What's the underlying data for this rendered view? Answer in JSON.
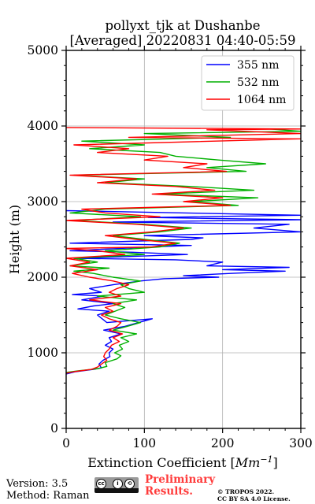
{
  "chart_data": {
    "type": "line",
    "title": "pollyxt_tjk at Dushanbe",
    "subtitle": "[Averaged] 20220831 04:40-05:59",
    "xlabel": "Extinction Coefficient [",
    "xlabel_unit": "Mm",
    "xlabel_unit_exp": "−1",
    "xlabel_close": "]",
    "ylabel": "Height (m)",
    "xlim": [
      0,
      300
    ],
    "ylim": [
      0,
      5000
    ],
    "xticks": [
      "0",
      "100",
      "200",
      "300"
    ],
    "yticks": [
      "0",
      "1000",
      "2000",
      "3000",
      "4000",
      "5000"
    ],
    "grid": true,
    "legend_position": "top-right",
    "series": [
      {
        "name": "355 nm",
        "color": "#0000ff",
        "profile": [
          [
            0,
            720
          ],
          [
            12,
            750
          ],
          [
            35,
            780
          ],
          [
            45,
            800
          ],
          [
            42,
            850
          ],
          [
            47,
            900
          ],
          [
            56,
            950
          ],
          [
            55,
            1000
          ],
          [
            60,
            1050
          ],
          [
            50,
            1100
          ],
          [
            58,
            1150
          ],
          [
            55,
            1200
          ],
          [
            70,
            1250
          ],
          [
            48,
            1300
          ],
          [
            75,
            1350
          ],
          [
            110,
            1450
          ],
          [
            52,
            1400
          ],
          [
            40,
            1500
          ],
          [
            55,
            1550
          ],
          [
            15,
            1580
          ],
          [
            35,
            1620
          ],
          [
            60,
            1650
          ],
          [
            20,
            1700
          ],
          [
            48,
            1750
          ],
          [
            8,
            1770
          ],
          [
            45,
            1800
          ],
          [
            30,
            1850
          ],
          [
            60,
            1900
          ],
          [
            95,
            1950
          ],
          [
            125,
            1980
          ],
          [
            195,
            2000
          ],
          [
            150,
            2020
          ],
          [
            210,
            2050
          ],
          [
            280,
            2080
          ],
          [
            200,
            2100
          ],
          [
            285,
            2130
          ],
          [
            180,
            2150
          ],
          [
            200,
            2200
          ],
          [
            140,
            2230
          ],
          [
            10,
            2250
          ],
          [
            155,
            2300
          ],
          [
            85,
            2330
          ],
          [
            5,
            2350
          ],
          [
            110,
            2400
          ],
          [
            160,
            2420
          ],
          [
            5,
            2450
          ],
          [
            160,
            2500
          ],
          [
            175,
            2520
          ],
          [
            100,
            2550
          ],
          [
            300,
            2600
          ],
          [
            240,
            2650
          ],
          [
            285,
            2700
          ],
          [
            60,
            2730
          ],
          [
            300,
            2760
          ],
          [
            105,
            2790
          ],
          [
            300,
            2820
          ],
          [
            100,
            2860
          ],
          [
            0,
            2880
          ]
        ]
      },
      {
        "name": "532 nm",
        "color": "#00b000",
        "profile": [
          [
            0,
            740
          ],
          [
            15,
            760
          ],
          [
            40,
            790
          ],
          [
            52,
            820
          ],
          [
            50,
            870
          ],
          [
            65,
            920
          ],
          [
            70,
            960
          ],
          [
            62,
            1000
          ],
          [
            72,
            1050
          ],
          [
            68,
            1100
          ],
          [
            80,
            1150
          ],
          [
            70,
            1200
          ],
          [
            90,
            1250
          ],
          [
            60,
            1300
          ],
          [
            78,
            1350
          ],
          [
            95,
            1400
          ],
          [
            70,
            1450
          ],
          [
            50,
            1500
          ],
          [
            75,
            1600
          ],
          [
            60,
            1650
          ],
          [
            90,
            1700
          ],
          [
            40,
            1750
          ],
          [
            100,
            1800
          ],
          [
            80,
            1850
          ],
          [
            70,
            1900
          ],
          [
            95,
            1950
          ],
          [
            60,
            2000
          ],
          [
            35,
            2050
          ],
          [
            10,
            2080
          ],
          [
            55,
            2120
          ],
          [
            5,
            2150
          ],
          [
            40,
            2200
          ],
          [
            10,
            2250
          ],
          [
            100,
            2300
          ],
          [
            50,
            2350
          ],
          [
            120,
            2400
          ],
          [
            145,
            2450
          ],
          [
            100,
            2500
          ],
          [
            60,
            2550
          ],
          [
            120,
            2600
          ],
          [
            160,
            2650
          ],
          [
            100,
            2700
          ],
          [
            10,
            2750
          ],
          [
            95,
            2800
          ],
          [
            5,
            2850
          ],
          [
            50,
            2900
          ],
          [
            220,
            2950
          ],
          [
            160,
            3000
          ],
          [
            245,
            3050
          ],
          [
            120,
            3100
          ],
          [
            240,
            3150
          ],
          [
            160,
            3200
          ],
          [
            50,
            3250
          ],
          [
            100,
            3300
          ],
          [
            10,
            3350
          ],
          [
            230,
            3400
          ],
          [
            180,
            3450
          ],
          [
            255,
            3500
          ],
          [
            195,
            3550
          ],
          [
            140,
            3600
          ],
          [
            120,
            3650
          ],
          [
            30,
            3700
          ],
          [
            100,
            3750
          ],
          [
            20,
            3800
          ],
          [
            210,
            3850
          ],
          [
            100,
            3900
          ],
          [
            300,
            3930
          ],
          [
            260,
            3960
          ]
        ]
      },
      {
        "name": "1064 nm",
        "color": "#ff0000",
        "profile": [
          [
            0,
            730
          ],
          [
            10,
            750
          ],
          [
            32,
            780
          ],
          [
            40,
            810
          ],
          [
            45,
            850
          ],
          [
            52,
            900
          ],
          [
            48,
            950
          ],
          [
            50,
            1000
          ],
          [
            55,
            1050
          ],
          [
            58,
            1100
          ],
          [
            68,
            1150
          ],
          [
            60,
            1200
          ],
          [
            72,
            1250
          ],
          [
            55,
            1300
          ],
          [
            65,
            1350
          ],
          [
            70,
            1400
          ],
          [
            55,
            1450
          ],
          [
            45,
            1500
          ],
          [
            60,
            1550
          ],
          [
            50,
            1600
          ],
          [
            70,
            1650
          ],
          [
            30,
            1700
          ],
          [
            70,
            1750
          ],
          [
            55,
            1800
          ],
          [
            65,
            1850
          ],
          [
            80,
            1900
          ],
          [
            60,
            1950
          ],
          [
            30,
            2000
          ],
          [
            8,
            2050
          ],
          [
            40,
            2100
          ],
          [
            5,
            2150
          ],
          [
            30,
            2200
          ],
          [
            0,
            2250
          ],
          [
            75,
            2300
          ],
          [
            40,
            2350
          ],
          [
            0,
            2380
          ],
          [
            110,
            2400
          ],
          [
            140,
            2450
          ],
          [
            90,
            2500
          ],
          [
            50,
            2550
          ],
          [
            110,
            2600
          ],
          [
            150,
            2650
          ],
          [
            90,
            2700
          ],
          [
            0,
            2750
          ],
          [
            120,
            2800
          ],
          [
            50,
            2850
          ],
          [
            20,
            2900
          ],
          [
            210,
            2950
          ],
          [
            150,
            3000
          ],
          [
            200,
            3050
          ],
          [
            110,
            3100
          ],
          [
            190,
            3150
          ],
          [
            140,
            3200
          ],
          [
            40,
            3250
          ],
          [
            90,
            3300
          ],
          [
            5,
            3350
          ],
          [
            205,
            3400
          ],
          [
            150,
            3450
          ],
          [
            180,
            3500
          ],
          [
            100,
            3550
          ],
          [
            130,
            3600
          ],
          [
            40,
            3650
          ],
          [
            80,
            3700
          ],
          [
            10,
            3750
          ],
          [
            300,
            3830
          ],
          [
            80,
            3850
          ],
          [
            300,
            3900
          ],
          [
            180,
            3950
          ],
          [
            300,
            3960
          ],
          [
            0,
            3980
          ]
        ]
      }
    ]
  },
  "footer": {
    "version": "Version: 3.5",
    "method": "Method: Raman",
    "preliminary_line1": "Preliminary",
    "preliminary_line2": "Results.",
    "copyright_line1": "© TROPOS 2022.",
    "copyright_line2": "CC BY SA 4.0 License."
  }
}
